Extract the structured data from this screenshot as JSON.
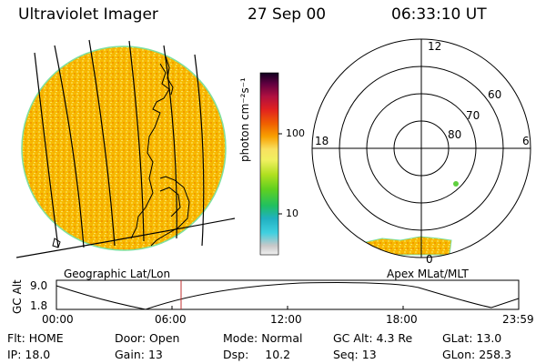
{
  "header": {
    "instrument": "Ultraviolet Imager",
    "date": "27 Sep 00",
    "time": "06:33:10 UT"
  },
  "earth_panel": {
    "label": "Geographic Lat/Lon"
  },
  "colorbar": {
    "unit_label": "photon cm⁻²s⁻¹",
    "tick_labels": [
      "100",
      "10"
    ]
  },
  "polar_panel": {
    "label": "Apex MLat/MLT",
    "mlt_labels": {
      "top": "12",
      "left": "18",
      "right": "6",
      "bottom": "0"
    },
    "lat_labels": [
      "60",
      "70",
      "80"
    ]
  },
  "altitude_plot": {
    "ylabel": "GC Alt",
    "y_ticks": [
      "9.0",
      "1.8"
    ],
    "x_ticks": [
      "00:00",
      "06:00",
      "12:00",
      "18:00",
      "23:59"
    ]
  },
  "status": {
    "row1": [
      {
        "label": "Flt:",
        "value": "HOME"
      },
      {
        "label": "Door:",
        "value": "Open"
      },
      {
        "label": "Mode:",
        "value": "Normal"
      },
      {
        "label": "GC Alt:",
        "value": "4.3 Re"
      },
      {
        "label": "GLat:",
        "value": "13.0"
      }
    ],
    "row2": [
      {
        "label": "IP:",
        "value": "18.0"
      },
      {
        "label": "Gain:",
        "value": "13"
      },
      {
        "label": "Dsp:",
        "value": "10.2"
      },
      {
        "label": "Seq:",
        "value": "13"
      },
      {
        "label": "GLon:",
        "value": "258.3"
      }
    ]
  },
  "colors": {
    "emission": "#f5b800",
    "limb": "#7ee0a0",
    "grid": "#000000",
    "marker": "#c03030"
  }
}
